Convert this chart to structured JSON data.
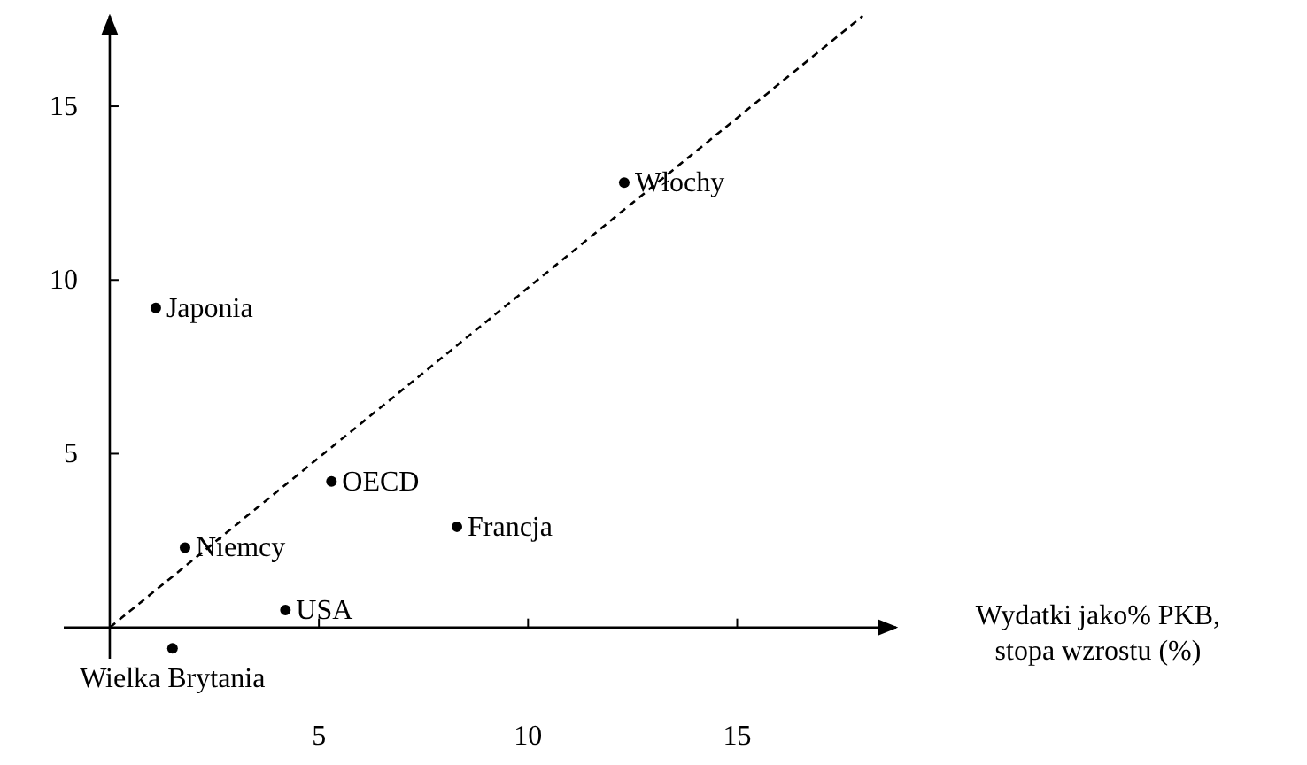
{
  "chart_data": {
    "type": "scatter",
    "xlabel": "Wydatki jako% PKB,\nstopa wzrostu (%)",
    "xlim": [
      -1.1,
      18.8
    ],
    "ylim": [
      -0.9,
      17.6
    ],
    "xticks": [
      5,
      10,
      15
    ],
    "yticks": [
      5,
      10,
      15
    ],
    "marker": "circle",
    "grid": false,
    "series": [
      {
        "name": "Włochy",
        "color": "#000000",
        "x": [
          12.3
        ],
        "values": [
          12.8
        ]
      },
      {
        "name": "Japonia",
        "color": "#000000",
        "x": [
          1.1
        ],
        "values": [
          9.2
        ]
      },
      {
        "name": "OECD",
        "color": "#000000",
        "x": [
          5.3
        ],
        "values": [
          4.2
        ]
      },
      {
        "name": "Francja",
        "color": "#000000",
        "x": [
          8.3
        ],
        "values": [
          2.9
        ]
      },
      {
        "name": "Niemcy",
        "color": "#000000",
        "x": [
          1.8
        ],
        "values": [
          2.3
        ]
      },
      {
        "name": "USA",
        "color": "#000000",
        "x": [
          4.2
        ],
        "values": [
          0.5
        ]
      },
      {
        "name": "Wielka Brytania",
        "color": "#000000",
        "x": [
          1.5
        ],
        "values": [
          -0.6
        ]
      },
      {
        "type": "line",
        "color": "#000000",
        "line_style": "dashed",
        "marker": "none",
        "x": [
          0,
          18
        ],
        "values": [
          0,
          17.6
        ]
      }
    ]
  }
}
